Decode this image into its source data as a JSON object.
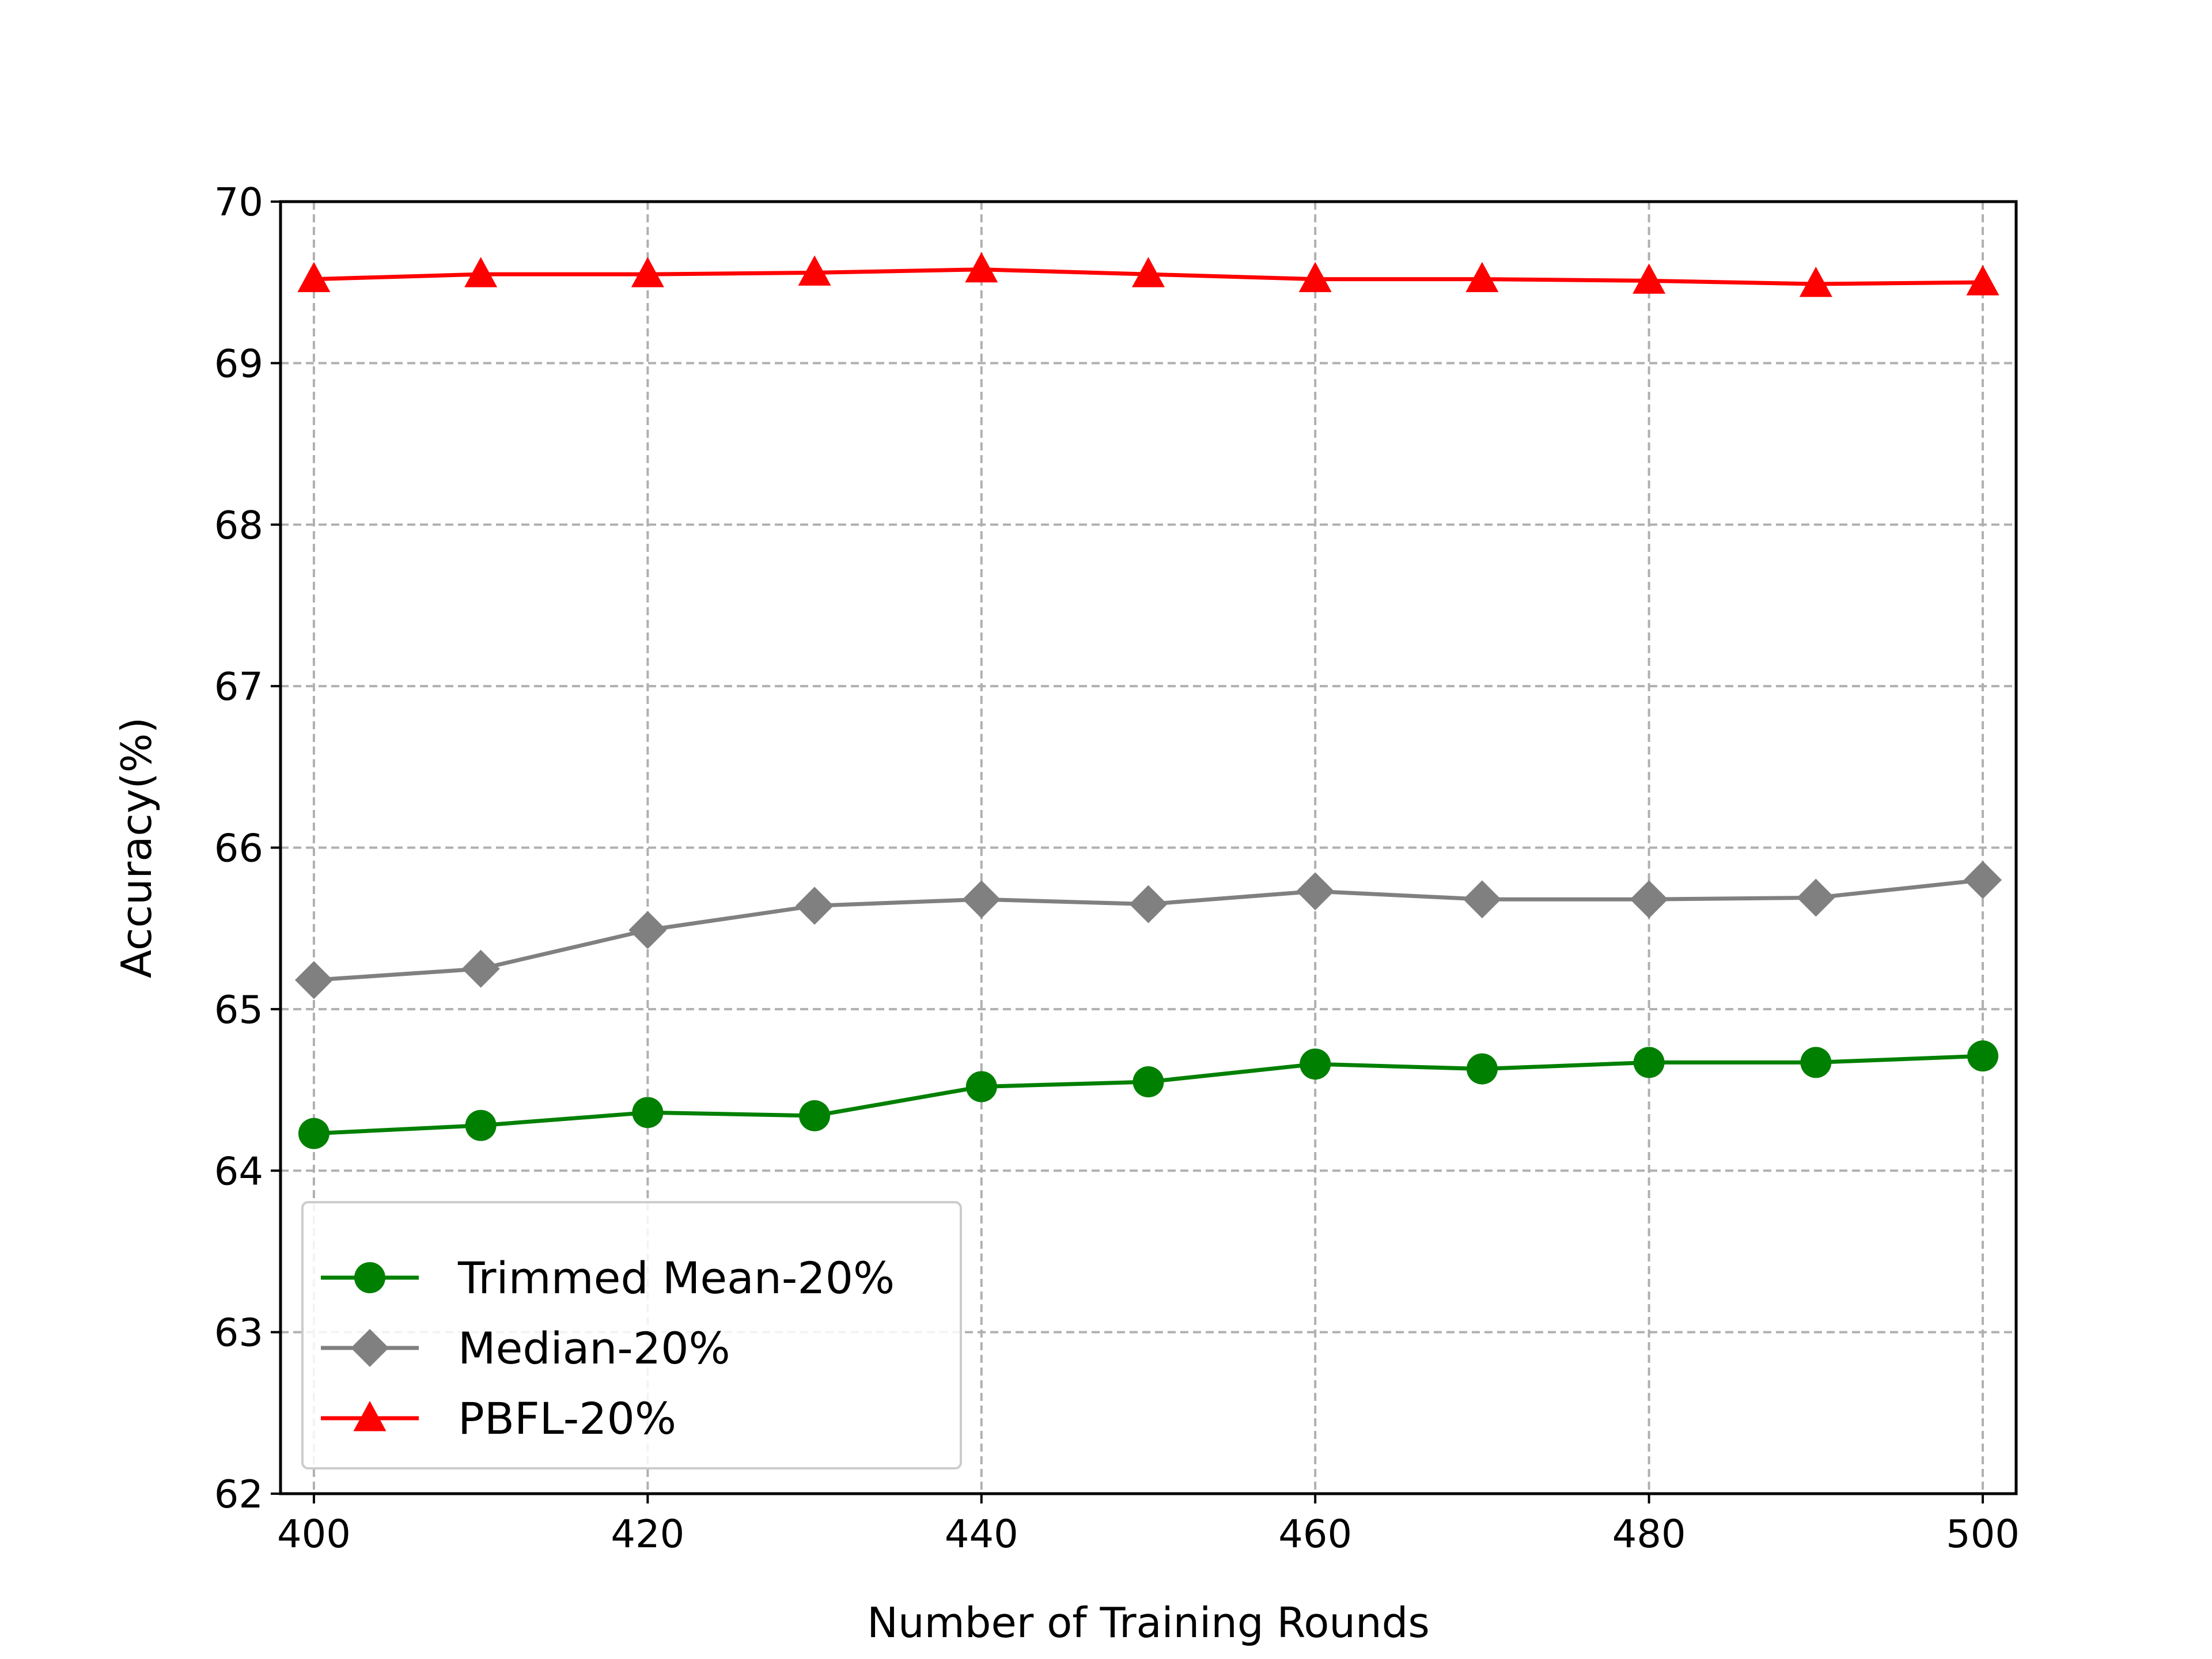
{
  "chart_data": {
    "type": "line",
    "title": "",
    "xlabel": "Number of Training Rounds",
    "ylabel": "Accuracy(%)",
    "x": [
      400,
      410,
      420,
      430,
      440,
      450,
      460,
      470,
      480,
      490,
      500
    ],
    "xlim": [
      398,
      502
    ],
    "ylim": [
      62,
      70
    ],
    "xticks": [
      "400",
      "420",
      "440",
      "460",
      "480",
      "500"
    ],
    "yticks": [
      "62",
      "63",
      "64",
      "65",
      "66",
      "67",
      "68",
      "69",
      "70"
    ],
    "grid": true,
    "legend_position": "lower-left",
    "series": [
      {
        "name": "Trimmed Mean-20%",
        "color": "#008000",
        "marker": "circle",
        "values": [
          64.23,
          64.28,
          64.36,
          64.34,
          64.52,
          64.55,
          64.66,
          64.63,
          64.67,
          64.67,
          64.71
        ]
      },
      {
        "name": "Median-20%",
        "color": "#808080",
        "marker": "diamond",
        "values": [
          65.18,
          65.25,
          65.49,
          65.64,
          65.68,
          65.65,
          65.73,
          65.68,
          65.68,
          65.69,
          65.8
        ]
      },
      {
        "name": "PBFL-20%",
        "color": "#ff0000",
        "marker": "triangle",
        "values": [
          69.52,
          69.55,
          69.55,
          69.56,
          69.58,
          69.55,
          69.52,
          69.52,
          69.51,
          69.49,
          69.5
        ]
      }
    ]
  }
}
